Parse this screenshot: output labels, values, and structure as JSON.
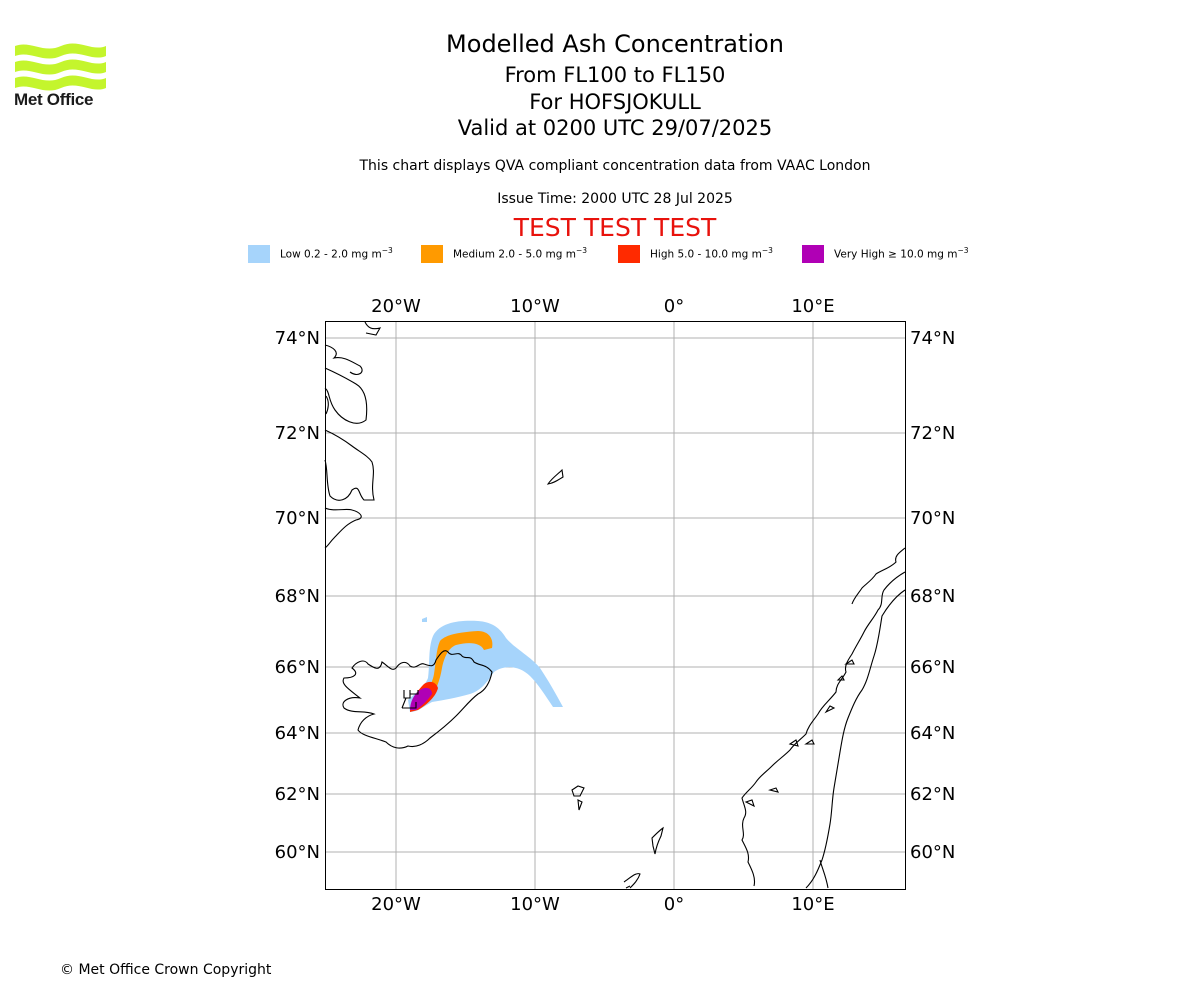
{
  "logo": {
    "text": "Met Office",
    "color": "#c4f52d"
  },
  "title": {
    "line1": "Modelled Ash Concentration",
    "line2": "From FL100 to FL150",
    "line3": "For HOFSJOKULL",
    "line4": "Valid at 0200 UTC 29/07/2025"
  },
  "subtitle": "This chart displays QVA compliant concentration data from VAAC London",
  "issue_time": "Issue Time: 2000 UTC 28 Jul 2025",
  "test_banner": "TEST TEST TEST",
  "legend": [
    {
      "label": "Low 0.2 - 2.0 mg m",
      "color": "#a6d4fb"
    },
    {
      "label": "Medium 2.0 - 5.0 mg m",
      "color": "#ff9a00"
    },
    {
      "label": "High 5.0 - 10.0 mg m",
      "color": "#ff2a00"
    },
    {
      "label": "Very High ≥ 10.0 mg m",
      "color": "#b000b5"
    }
  ],
  "legend_unit_exponent": "−3",
  "map": {
    "lon_labels": [
      "20°W",
      "10°W",
      "0°",
      "10°E"
    ],
    "lat_labels": [
      "74°N",
      "72°N",
      "70°N",
      "68°N",
      "66°N",
      "64°N",
      "62°N",
      "60°N"
    ],
    "gridline_color": "#b0b0b0",
    "coast_color": "#000000",
    "volcano": "HOFSJOKULL"
  },
  "copyright": "© Met Office Crown Copyright"
}
